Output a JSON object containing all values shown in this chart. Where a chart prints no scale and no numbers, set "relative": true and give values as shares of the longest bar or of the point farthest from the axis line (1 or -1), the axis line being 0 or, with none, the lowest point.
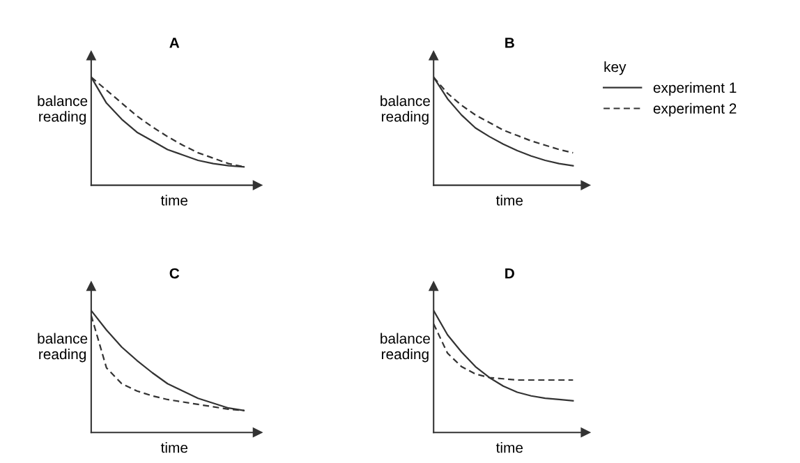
{
  "chart_data": [
    {
      "type": "line",
      "title": "A",
      "xlabel": "time",
      "ylabel": "balance reading",
      "relative": true,
      "categories": [
        null,
        null,
        null,
        null,
        null,
        null,
        null,
        null,
        null,
        null,
        null
      ],
      "series": [
        {
          "color": "#333333",
          "line_style": "solid",
          "values": [
            1,
            0.76,
            0.61,
            0.49,
            0.41,
            0.33,
            0.28,
            0.23,
            0.2,
            0.18,
            0.17
          ]
        },
        {
          "color": "#333333",
          "line_style": "dashed",
          "values": [
            1,
            0.88,
            0.76,
            0.64,
            0.54,
            0.45,
            0.37,
            0.3,
            0.25,
            0.2,
            0.17
          ]
        }
      ]
    },
    {
      "type": "line",
      "title": "B",
      "xlabel": "time",
      "ylabel": "balance reading",
      "relative": true,
      "categories": [
        null,
        null,
        null,
        null,
        null,
        null,
        null,
        null,
        null,
        null,
        null
      ],
      "legend": "right",
      "legend_title": "key",
      "series": [
        {
          "name": "experiment 1",
          "color": "#333333",
          "line_style": "solid",
          "values": [
            1,
            0.8,
            0.65,
            0.53,
            0.45,
            0.38,
            0.32,
            0.27,
            0.23,
            0.2,
            0.18
          ]
        },
        {
          "name": "experiment 2",
          "color": "#333333",
          "line_style": "dashed",
          "values": [
            1,
            0.85,
            0.74,
            0.65,
            0.58,
            0.51,
            0.46,
            0.41,
            0.37,
            0.33,
            0.3
          ]
        }
      ]
    },
    {
      "type": "line",
      "title": "C",
      "xlabel": "time",
      "ylabel": "balance reading",
      "relative": true,
      "categories": [
        null,
        null,
        null,
        null,
        null,
        null,
        null,
        null,
        null,
        null,
        null
      ],
      "series": [
        {
          "color": "#333333",
          "line_style": "solid",
          "values": [
            1,
            0.84,
            0.7,
            0.59,
            0.49,
            0.4,
            0.34,
            0.28,
            0.24,
            0.2,
            0.18
          ]
        },
        {
          "color": "#333333",
          "line_style": "dashed",
          "values": [
            0.96,
            0.53,
            0.4,
            0.34,
            0.3,
            0.27,
            0.25,
            0.23,
            0.21,
            0.19,
            0.18
          ]
        }
      ]
    },
    {
      "type": "line",
      "title": "D",
      "xlabel": "time",
      "ylabel": "balance reading",
      "relative": true,
      "categories": [
        null,
        null,
        null,
        null,
        null,
        null,
        null,
        null,
        null,
        null,
        null
      ],
      "series": [
        {
          "color": "#333333",
          "line_style": "solid",
          "values": [
            1,
            0.8,
            0.66,
            0.54,
            0.45,
            0.38,
            0.33,
            0.3,
            0.28,
            0.27,
            0.26
          ]
        },
        {
          "color": "#333333",
          "line_style": "dashed",
          "values": [
            0.89,
            0.65,
            0.54,
            0.48,
            0.45,
            0.44,
            0.43,
            0.43,
            0.43,
            0.43,
            0.43
          ]
        }
      ]
    }
  ]
}
